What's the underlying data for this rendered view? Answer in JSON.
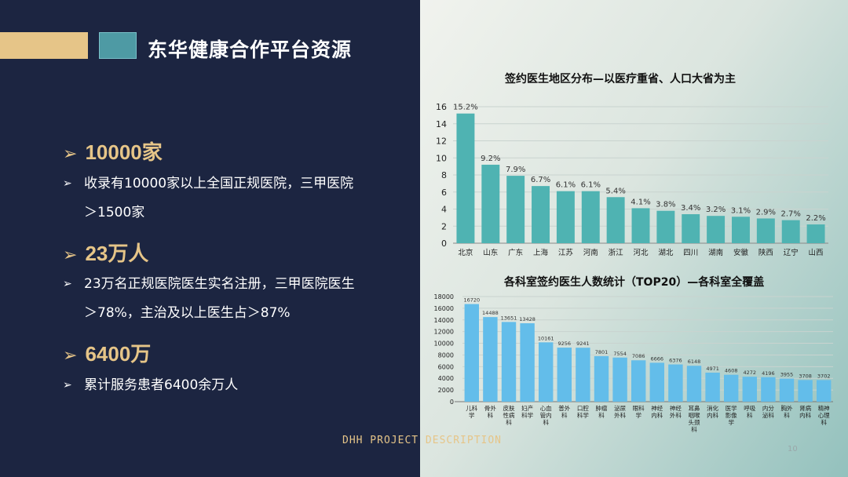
{
  "slide": {
    "title": "东华健康合作平台资源",
    "footer": "DHH PROJECT DESCRIPTION",
    "page_number": "10",
    "arrow_glyph": "➢"
  },
  "stats": [
    {
      "value": "10000家",
      "lines": [
        "收录有10000家以上全国正规医院，三甲医院",
        "＞1500家"
      ]
    },
    {
      "value": "23万人",
      "lines": [
        "23万名正规医院医生实名注册，三甲医院医生",
        "＞78%，主治及以上医生占＞87%"
      ]
    },
    {
      "value": "6400万",
      "lines": [
        "累计服务患者6400余万人"
      ]
    }
  ],
  "colors": {
    "accent_gold": "#e6c588",
    "accent_teal": "#4e9aa4",
    "panel_dark": "#1c2541",
    "chart1_bar": "#4fb3b2",
    "chart2_bar": "#63bdea"
  },
  "chart_data": [
    {
      "type": "bar",
      "title": "签约医生地区分布—以医疗重省、人口大省为主",
      "categories": [
        "北京",
        "山东",
        "广东",
        "上海",
        "江苏",
        "河南",
        "浙江",
        "河北",
        "湖北",
        "四川",
        "湖南",
        "安徽",
        "陕西",
        "辽宁",
        "山西"
      ],
      "values": [
        15.2,
        9.2,
        7.9,
        6.7,
        6.1,
        6.1,
        5.4,
        4.1,
        3.8,
        3.4,
        3.2,
        3.1,
        2.9,
        2.7,
        2.2
      ],
      "data_labels": [
        "15.2%",
        "9.2%",
        "7.9%",
        "6.7%",
        "6.1%",
        "6.1%",
        "5.4%",
        "4.1%",
        "3.8%",
        "3.4%",
        "3.2%",
        "3.1%",
        "2.9%",
        "2.7%",
        "2.2%"
      ],
      "yticks": [
        "0",
        "2",
        "4",
        "6",
        "8",
        "10",
        "12",
        "14",
        "16"
      ],
      "ylim": [
        0,
        16
      ],
      "grid": true
    },
    {
      "type": "bar",
      "title": "各科室签约医生人数统计（TOP20）—各科室全覆盖",
      "categories": [
        "儿科学",
        "骨外科",
        "皮肤性病科",
        "妇产科学",
        "心血管内科",
        "普外科",
        "口腔科学",
        "肿瘤科",
        "泌尿外科",
        "眼科学",
        "神经内科",
        "神经外科",
        "耳鼻咽喉头颈科",
        "消化内科",
        "医学影像学",
        "呼吸科",
        "内分泌科",
        "胸外科",
        "肾病内科",
        "精神心理科"
      ],
      "values": [
        16720,
        14488,
        13651,
        13428,
        10161,
        9256,
        9241,
        7801,
        7554,
        7086,
        6666,
        6376,
        6148,
        4971,
        4608,
        4272,
        4196,
        3955,
        3708,
        3702
      ],
      "yticks": [
        "0",
        "2000",
        "4000",
        "6000",
        "8000",
        "10000",
        "12000",
        "14000",
        "16000",
        "18000"
      ],
      "ylim": [
        0,
        18000
      ],
      "grid": true
    }
  ]
}
